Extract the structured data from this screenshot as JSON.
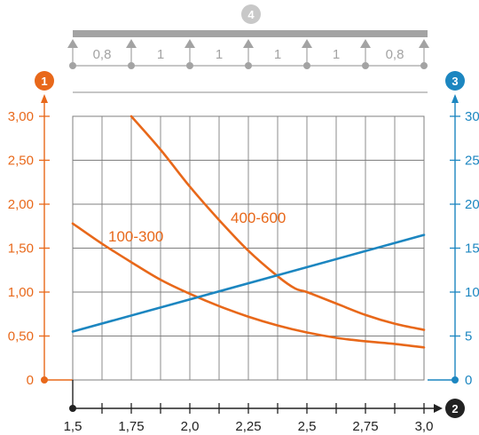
{
  "colors": {
    "orange": "#e8681a",
    "blue": "#1c86c0",
    "grid": "#7f7f7f",
    "beam": "#a3a3a3",
    "axis_dark": "#222222"
  },
  "badges": {
    "left_axis": "1",
    "bottom_axis": "2",
    "right_axis": "3",
    "beam": "4"
  },
  "beam": {
    "span_labels": [
      "0,8",
      "1",
      "1",
      "1",
      "1",
      "0,8"
    ]
  },
  "chart_data": {
    "type": "line",
    "x_ticks": [
      "1,5",
      "1,75",
      "2,0",
      "2,25",
      "2,5",
      "2,75",
      "3,0"
    ],
    "x_range": [
      1.5,
      3.0
    ],
    "y_left": {
      "ticks": [
        "0",
        "0,50",
        "1,00",
        "1,50",
        "2,00",
        "2,50",
        "3,00"
      ],
      "range": [
        0,
        3.0
      ]
    },
    "y_right": {
      "ticks": [
        "0",
        "5",
        "10",
        "15",
        "20",
        "25",
        "30"
      ],
      "range": [
        0,
        30
      ]
    },
    "grid": true,
    "series": [
      {
        "name": "100-300",
        "axis": "left",
        "color": "#e8681a",
        "x": [
          1.5,
          1.625,
          1.75,
          1.875,
          2.0,
          2.125,
          2.25,
          2.375,
          2.5,
          2.625,
          2.75,
          2.875,
          3.0
        ],
        "y": [
          1.78,
          1.55,
          1.34,
          1.14,
          0.98,
          0.84,
          0.72,
          0.62,
          0.54,
          0.48,
          0.44,
          0.41,
          0.37
        ]
      },
      {
        "name": "400-600",
        "axis": "left",
        "color": "#e8681a",
        "x": [
          1.75,
          1.875,
          2.0,
          2.125,
          2.25,
          2.375,
          2.45,
          2.5,
          2.625,
          2.75,
          2.875,
          3.0
        ],
        "y": [
          3.0,
          2.62,
          2.2,
          1.82,
          1.47,
          1.18,
          1.04,
          1.0,
          0.87,
          0.74,
          0.64,
          0.57
        ]
      },
      {
        "name": "",
        "axis": "right",
        "color": "#1c86c0",
        "x": [
          1.5,
          3.0
        ],
        "y": [
          5.5,
          16.5
        ]
      }
    ]
  }
}
